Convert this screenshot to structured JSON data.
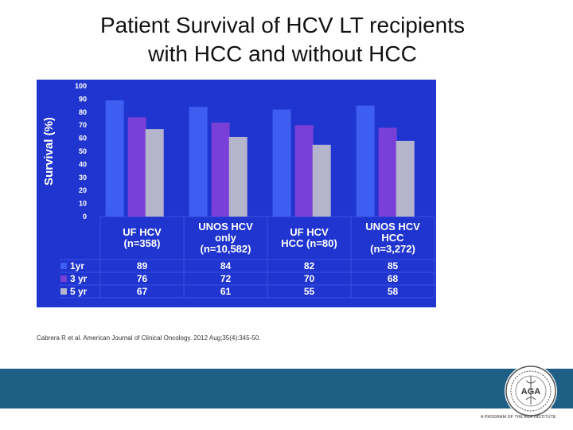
{
  "slide": {
    "title_line1": "Patient Survival of HCV LT recipients",
    "title_line2": "with HCC and without HCC",
    "citation": "Cabrera R et al. American Journal of  Clinical Oncology. 2012 Aug;35(4):345-50.",
    "logo_caption": "A PROGRAM OF THE AGA INSTITUTE",
    "logo_text": "AGA"
  },
  "colors": {
    "panel": "#2035d0",
    "grid": "#3a4ee0",
    "series": [
      "#3d5ef0",
      "#7a3fd6",
      "#b4b4cc"
    ],
    "text": "#ffffff",
    "footer": "#1f5f86"
  },
  "chart_data": {
    "type": "bar",
    "title": "",
    "ylabel": "Survival (%)",
    "xlabel": "",
    "ylim": [
      0,
      100
    ],
    "yticks": [
      100,
      90,
      80,
      70,
      60,
      50,
      40,
      30,
      20,
      10,
      0
    ],
    "categories": [
      [
        "UF HCV",
        "(n=358)"
      ],
      [
        "UNOS HCV",
        "only",
        "(n=10,582)"
      ],
      [
        "UF HCV",
        "HCC (n=80)"
      ],
      [
        "UNOS HCV",
        "HCC",
        "(n=3,272)"
      ]
    ],
    "series": [
      {
        "name": "1yr",
        "values": [
          89,
          84,
          82,
          85
        ]
      },
      {
        "name": "3 yr",
        "values": [
          76,
          72,
          70,
          68
        ]
      },
      {
        "name": "5 yr",
        "values": [
          67,
          61,
          55,
          58
        ]
      }
    ],
    "legend": "data-table"
  }
}
